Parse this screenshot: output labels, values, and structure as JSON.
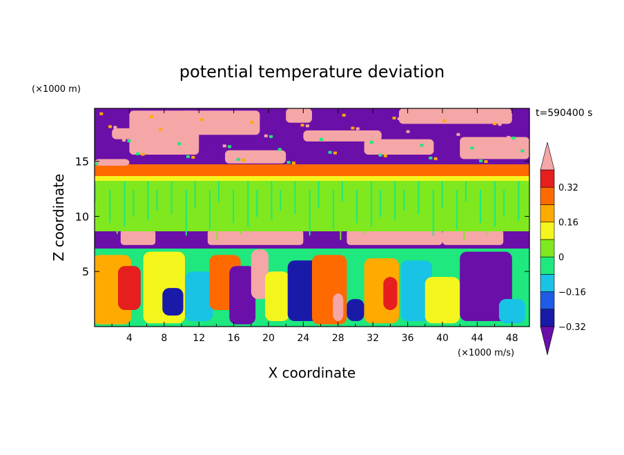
{
  "chart_data": {
    "type": "heatmap",
    "title": "potential temperature deviation",
    "xlabel": "X coordinate",
    "ylabel": "Z coordinate",
    "x_unit": "(×1000 m/s)",
    "y_unit": "(×1000 m)",
    "time_label": "t=590400 s",
    "xlim": [
      0,
      50
    ],
    "ylim": [
      0,
      19.8
    ],
    "x_ticks": [
      "4",
      "8",
      "12",
      "16",
      "20",
      "24",
      "28",
      "32",
      "36",
      "40",
      "44",
      "48"
    ],
    "y_ticks": [
      "5",
      "10",
      "15"
    ],
    "colorbar": {
      "levels": [
        -0.4,
        -0.32,
        -0.24,
        -0.16,
        -0.08,
        0,
        0.08,
        0.16,
        0.24,
        0.32,
        0.4
      ],
      "tick_labels": [
        "0.32",
        "0.16",
        "0",
        "−0.16",
        "−0.32"
      ],
      "colors": [
        "#6a0fa8",
        "#1a1aa8",
        "#1e5be6",
        "#19c3e6",
        "#1ee87e",
        "#7fe81e",
        "#f5f51e",
        "#ffaa00",
        "#ff6a00",
        "#e61e1e",
        "#f5a6a6"
      ],
      "extend": "both"
    },
    "bands": [
      {
        "z_range": [
          0,
          7.2
        ],
        "description": "convective plumes, values -0.4 to 0.4"
      },
      {
        "z_range": [
          7.2,
          8.8
        ],
        "description": "mostly below -0.4 with positive patches"
      },
      {
        "z_range": [
          8.8,
          13.5
        ],
        "description": "near 0 to 0.08"
      },
      {
        "z_range": [
          13.5,
          14.8
        ],
        "description": "0.24 to 0.4 transition"
      },
      {
        "z_range": [
          14.8,
          19.8
        ],
        "description": "alternating above 0.4 and below -0.4 patches"
      }
    ]
  }
}
